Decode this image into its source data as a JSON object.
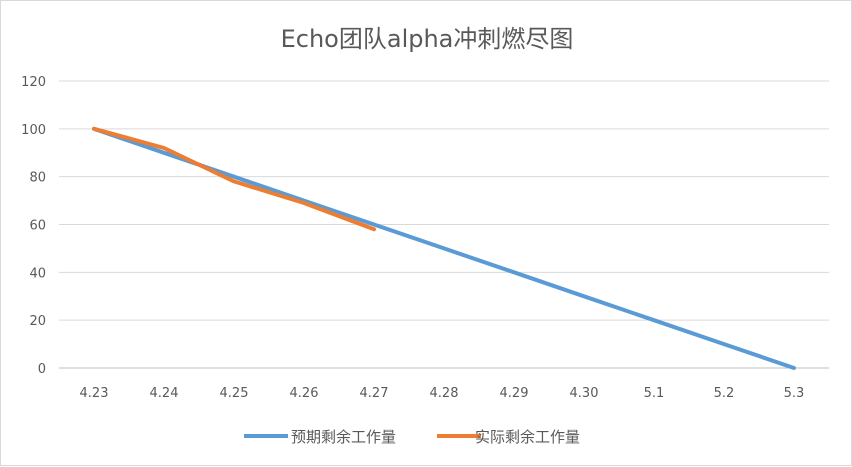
{
  "chart_data": {
    "type": "line",
    "title": "Echo团队alpha冲刺燃尽图",
    "categories": [
      "4.23",
      "4.24",
      "4.25",
      "4.26",
      "4.27",
      "4.28",
      "4.29",
      "4.30",
      "5.1",
      "5.2",
      "5.3"
    ],
    "ylim": [
      0,
      120
    ],
    "yticks": [
      0,
      20,
      40,
      60,
      80,
      100,
      120
    ],
    "grid": true,
    "legend_position": "bottom",
    "series": [
      {
        "name": "预期剩余工作量",
        "color": "#5b9bd5",
        "values": [
          100,
          90,
          80,
          70,
          60,
          50,
          40,
          30,
          20,
          10,
          0
        ]
      },
      {
        "name": "实际剩余工作量",
        "color": "#ed7d31",
        "values": [
          100,
          92,
          78,
          69,
          58,
          null,
          null,
          null,
          null,
          null,
          null
        ]
      }
    ]
  }
}
